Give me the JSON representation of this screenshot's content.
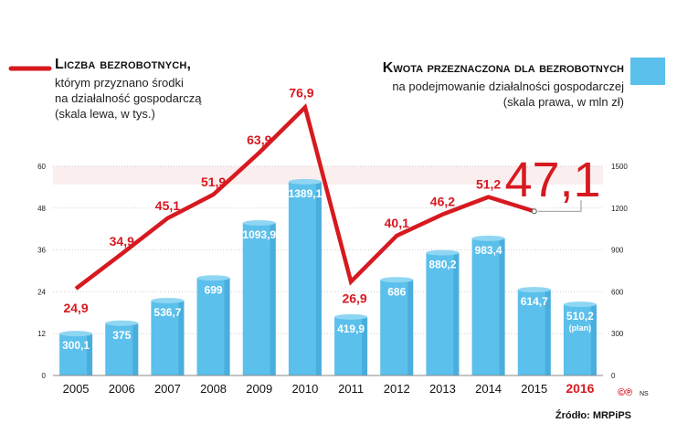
{
  "legend": {
    "line_title": "Liczba bezrobotnych,",
    "line_desc": "którym przyznano środki\nna działalność gospodarczą\n(skala lewa, w tys.)",
    "bar_title": "Kwota przeznaczona dla bezrobotnych",
    "bar_desc": "na podejmowanie działalności gospodarczej\n(skala prawa, w mln zł)"
  },
  "source": "Źródło: MRPiPS",
  "copyright": "©℗",
  "copyright_ns": "NS",
  "colors": {
    "bar": "#5bc0eb",
    "bar_dark": "#3a9fd1",
    "line": "#d71920",
    "axis_text": "#222222",
    "grid": "#cfcfcf"
  },
  "chart_data": {
    "type": "bar",
    "categories": [
      "2005",
      "2006",
      "2007",
      "2008",
      "2009",
      "2010",
      "2011",
      "2012",
      "2013",
      "2014",
      "2015",
      "2016"
    ],
    "highlight_category": "2016",
    "left_axis": {
      "ticks": [
        0,
        12,
        24,
        36,
        48,
        60
      ],
      "ylim": [
        0,
        60
      ]
    },
    "right_axis": {
      "ticks": [
        0,
        300,
        600,
        900,
        1200,
        1500
      ],
      "ylim": [
        0,
        1500
      ]
    },
    "series": [
      {
        "name": "Kwota przeznaczona dla bezrobotnych",
        "type": "bar",
        "axis": "right",
        "values": [
          300.1,
          375,
          536.7,
          699,
          1093.9,
          1389.1,
          419.9,
          686,
          880.2,
          983.4,
          614.7,
          510.2
        ],
        "labels": [
          "300,1",
          "375",
          "536,7",
          "699",
          "1093,9",
          "1389,1",
          "419,9",
          "686",
          "880,2",
          "983,4",
          "614,7",
          "510,2"
        ],
        "notes": [
          "",
          "",
          "",
          "",
          "",
          "",
          "",
          "",
          "",
          "",
          "",
          "(plan)"
        ]
      },
      {
        "name": "Liczba bezrobotnych",
        "type": "line",
        "axis": "left",
        "values": [
          24.9,
          34.9,
          45.1,
          51.9,
          63.9,
          76.9,
          26.9,
          40.1,
          46.2,
          51.2,
          47.1,
          null
        ],
        "labels": [
          "24,9",
          "34,9",
          "45,1",
          "51,9",
          "63,9",
          "76,9",
          "26,9",
          "40,1",
          "46,2",
          "51,2",
          "47,1",
          ""
        ]
      }
    ]
  }
}
